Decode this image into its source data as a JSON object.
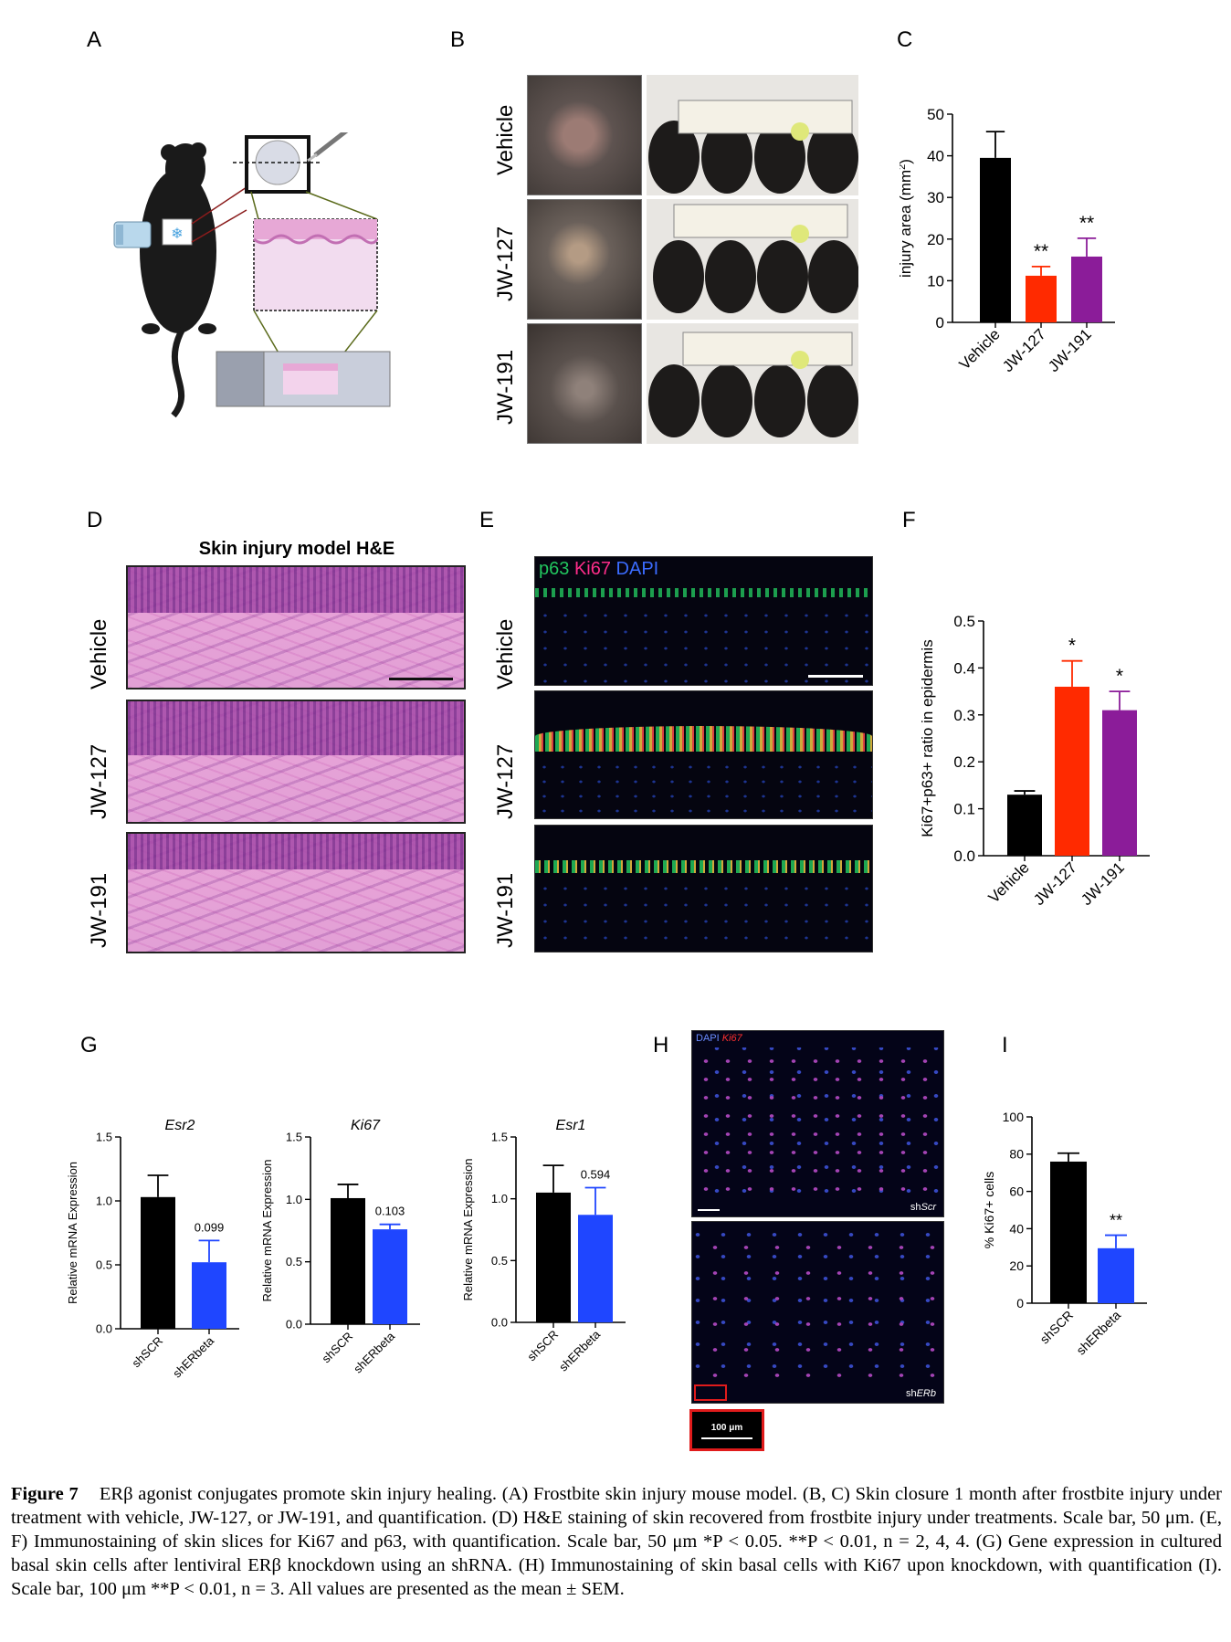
{
  "panel_labels": {
    "A": "A",
    "B": "B",
    "C": "C",
    "D": "D",
    "E": "E",
    "F": "F",
    "G": "G",
    "H": "H",
    "I": "I"
  },
  "panel_b": {
    "row_labels": [
      "Vehicle",
      "JW-127",
      "JW-191"
    ]
  },
  "panel_d": {
    "title": "Skin injury model H&E",
    "row_labels": [
      "Vehicle",
      "JW-127",
      "JW-191"
    ]
  },
  "panel_e": {
    "stain_p63": "p63",
    "stain_ki67": "Ki67",
    "stain_dapi": "DAPI",
    "row_labels": [
      "Vehicle",
      "JW-127",
      "JW-191"
    ],
    "colors": {
      "p63": "#22c55e",
      "ki67": "#ff2d8a",
      "dapi": "#3b6cff"
    }
  },
  "panel_h": {
    "stain_dapi": "DAPI",
    "stain_ki67": "Ki67",
    "label_top_prefix": "sh",
    "label_top_italic": "Scr",
    "label_bottom_prefix": "sh",
    "label_bottom_italic": "ERb",
    "scale_text": "100 μm"
  },
  "colors": {
    "black": "#000000",
    "red": "#ff2a00",
    "purple": "#8b1c99",
    "blue": "#1f46ff"
  },
  "chart_data": [
    {
      "id": "C",
      "type": "bar",
      "categories": [
        "Vehicle",
        "JW-127",
        "JW-191"
      ],
      "values": [
        39.5,
        11.2,
        15.8
      ],
      "errors": [
        6.3,
        2.2,
        4.4
      ],
      "significance": [
        "",
        "**",
        "**"
      ],
      "colors": [
        "#000000",
        "#ff2a00",
        "#8b1c99"
      ],
      "ylabel_main": "injury area (mm",
      "ylabel_sup": "2",
      "ylabel_end": ")",
      "ylim": [
        0,
        50
      ],
      "yticks": [
        "0",
        "10",
        "20",
        "30",
        "40",
        "50"
      ]
    },
    {
      "id": "F",
      "type": "bar",
      "categories": [
        "Vehicle",
        "JW-127",
        "JW-191"
      ],
      "values": [
        0.13,
        0.36,
        0.31
      ],
      "errors": [
        0.008,
        0.055,
        0.04
      ],
      "significance": [
        "",
        "*",
        "*"
      ],
      "colors": [
        "#000000",
        "#ff2a00",
        "#8b1c99"
      ],
      "ylabel": "Ki67+p63+ ratio in epidermis",
      "ylim": [
        0,
        0.5
      ],
      "yticks": [
        "0.0",
        "0.1",
        "0.2",
        "0.3",
        "0.4",
        "0.5"
      ]
    },
    {
      "id": "G1",
      "type": "bar",
      "title": "Esr2",
      "categories": [
        "shSCR",
        "shERbeta"
      ],
      "values": [
        1.03,
        0.52
      ],
      "errors": [
        0.17,
        0.17
      ],
      "annotations": [
        "",
        "0.099"
      ],
      "colors": [
        "#000000",
        "#1f46ff"
      ],
      "ylabel": "Relative mRNA Expression",
      "ylim": [
        0,
        1.5
      ],
      "yticks": [
        "0.0",
        "0.5",
        "1.0",
        "1.5"
      ]
    },
    {
      "id": "G2",
      "type": "bar",
      "title": "Ki67",
      "categories": [
        "shSCR",
        "shERbeta"
      ],
      "values": [
        1.01,
        0.76
      ],
      "errors": [
        0.11,
        0.04
      ],
      "annotations": [
        "",
        "0.103"
      ],
      "colors": [
        "#000000",
        "#1f46ff"
      ],
      "ylabel": "Relative mRNA Expression",
      "ylim": [
        0,
        1.5
      ],
      "yticks": [
        "0.0",
        "0.5",
        "1.0",
        "1.5"
      ]
    },
    {
      "id": "G3",
      "type": "bar",
      "title": "Esr1",
      "categories": [
        "shSCR",
        "shERbeta"
      ],
      "values": [
        1.05,
        0.87
      ],
      "errors": [
        0.22,
        0.22
      ],
      "annotations": [
        "",
        "0.594"
      ],
      "colors": [
        "#000000",
        "#1f46ff"
      ],
      "ylabel": "Relative mRNA Expression",
      "ylim": [
        0,
        1.5
      ],
      "yticks": [
        "0.0",
        "0.5",
        "1.0",
        "1.5"
      ]
    },
    {
      "id": "I",
      "type": "bar",
      "categories": [
        "shSCR",
        "shERbeta"
      ],
      "values": [
        76,
        29.5
      ],
      "errors": [
        4.5,
        7
      ],
      "significance": [
        "",
        "**"
      ],
      "colors": [
        "#000000",
        "#1f46ff"
      ],
      "ylabel": "% Ki67+ cells",
      "ylim": [
        0,
        100
      ],
      "yticks": [
        "0",
        "20",
        "40",
        "60",
        "80",
        "100"
      ]
    }
  ],
  "caption": {
    "figure_label": "Figure 7",
    "text": "ERβ agonist conjugates promote skin injury healing. (A) Frostbite skin injury mouse model. (B, C) Skin closure 1 month after frostbite injury under treatment with vehicle, JW-127, or JW-191, and quantification. (D) H&E staining of skin recovered from frostbite injury under treatments. Scale bar, 50 μm. (E, F) Immunostaining of skin slices for Ki67 and p63, with quantification. Scale bar, 50 μm *P < 0.05. **P < 0.01, n = 2, 4, 4. (G) Gene expression in cultured basal skin cells after lentiviral ERβ knockdown using an shRNA. (H) Immunostaining of skin basal cells with Ki67 upon knockdown, with quantification (I). Scale bar, 100 μm **P < 0.01, n = 3. All values are presented as the mean ± SEM."
  }
}
